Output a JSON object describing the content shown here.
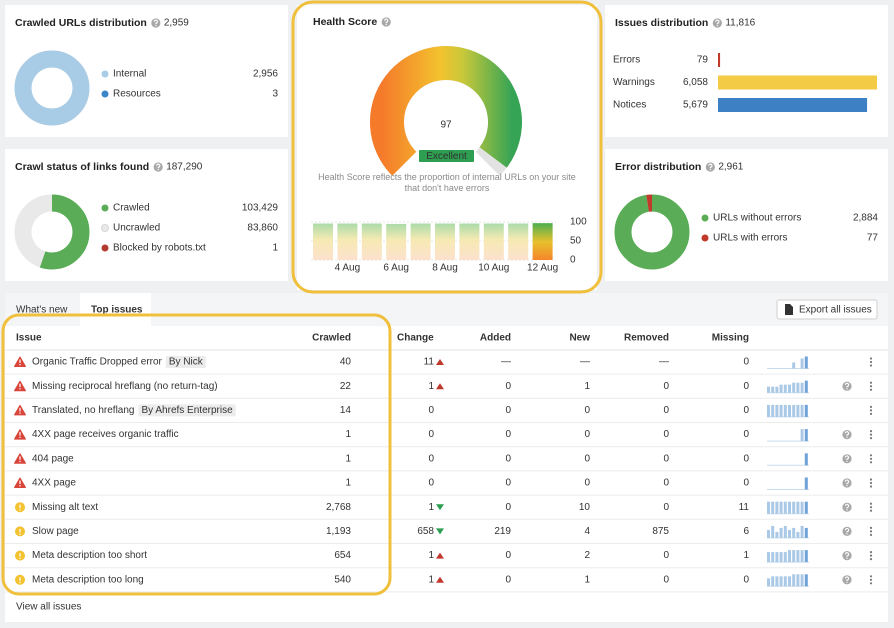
{
  "cards": {
    "crawled_urls": {
      "type": "donut",
      "title": "Crawled URLs distribution",
      "total": "2,959",
      "total_style": "link",
      "items": [
        {
          "label": "Internal",
          "value": "2,956",
          "color": "#a8cbe6"
        },
        {
          "label": "Resources",
          "value": "3",
          "color": "#3a86c8"
        }
      ]
    },
    "crawl_status": {
      "type": "donut",
      "title": "Crawl status of links found",
      "total": "187,290",
      "total_style": "link",
      "items": [
        {
          "label": "Crawled",
          "value": "103,429",
          "color": "#5aac56"
        },
        {
          "label": "Uncrawled",
          "value": "83,860",
          "color": "#e9e9e9"
        },
        {
          "label": "Blocked by robots.txt",
          "value": "1",
          "color": "#b23a2e"
        }
      ]
    },
    "issues_distribution": {
      "type": "bars",
      "title": "Issues distribution",
      "total": "11,816",
      "total_style": "muted",
      "items": [
        {
          "label": "Errors",
          "value": "79",
          "color": "#c0392b"
        },
        {
          "label": "Warnings",
          "value": "6,058",
          "color": "#f3cb45"
        },
        {
          "label": "Notices",
          "value": "5,679",
          "color": "#3d80c4"
        }
      ]
    },
    "error_distribution": {
      "type": "donut",
      "title": "Error distribution",
      "total": "2,961",
      "total_style": "muted",
      "items": [
        {
          "label": "URLs without errors",
          "value": "2,884",
          "color": "#5aac56"
        },
        {
          "label": "URLs with errors",
          "value": "77",
          "color": "#c0392b"
        }
      ]
    }
  },
  "health": {
    "title": "Health Score",
    "score": "97",
    "badge": "Excellent",
    "description": "Health Score reflects the proportion of internal URLs on your site that don't have errors",
    "history": {
      "categories": [
        null,
        "4 Aug",
        null,
        "6 Aug",
        null,
        "8 Aug",
        null,
        "10 Aug",
        null,
        "12 Aug"
      ],
      "values": [
        96,
        96,
        96,
        95,
        96,
        96,
        96,
        96,
        96,
        97
      ],
      "ylim": [
        0,
        100
      ],
      "yticks": [
        0,
        50,
        100
      ]
    }
  },
  "tabs": [
    "What's new",
    "Top issues"
  ],
  "active_tab": 1,
  "export_button": "Export all issues",
  "table": {
    "columns": [
      "Issue",
      "Crawled",
      "Change",
      "Added",
      "New",
      "Removed",
      "Missing"
    ],
    "rows": [
      {
        "severity": "error",
        "issue": "Organic Traffic Dropped error",
        "tag": "By Nick",
        "crawled": "40",
        "change": "11",
        "change_direction": "up",
        "added": "—",
        "new": "—",
        "removed": "—",
        "missing": "0",
        "trend": [
          0,
          0,
          0,
          0,
          0,
          0,
          3,
          0,
          5,
          6
        ],
        "help": false
      },
      {
        "severity": "error",
        "issue": "Missing reciprocal hreflang (no return-tag)",
        "crawled": "22",
        "change": "1",
        "change_direction": "up",
        "added": "0",
        "new": "1",
        "removed": "0",
        "missing": "0",
        "trend": [
          3,
          3,
          3,
          4,
          4,
          4,
          5,
          5,
          5,
          6
        ],
        "help": true
      },
      {
        "severity": "error",
        "issue": "Translated, no hreflang",
        "tag": "By Ahrefs Enterprise",
        "crawled": "14",
        "change": "0",
        "change_direction": null,
        "added": "0",
        "new": "0",
        "removed": "0",
        "missing": "0",
        "trend": [
          6,
          6,
          6,
          6,
          6,
          6,
          6,
          6,
          6,
          6
        ],
        "help": false
      },
      {
        "severity": "error",
        "issue": "4XX page receives organic traffic",
        "crawled": "1",
        "change": "0",
        "change_direction": null,
        "added": "0",
        "new": "0",
        "removed": "0",
        "missing": "0",
        "trend": [
          0,
          0,
          0,
          0,
          0,
          0,
          0,
          0,
          6,
          6
        ],
        "help": true
      },
      {
        "severity": "error",
        "issue": "404 page",
        "crawled": "1",
        "change": "0",
        "change_direction": null,
        "added": "0",
        "new": "0",
        "removed": "0",
        "missing": "0",
        "trend": [
          0,
          0,
          0,
          0,
          0,
          0,
          0,
          0,
          0,
          6
        ],
        "help": true
      },
      {
        "severity": "error",
        "issue": "4XX page",
        "crawled": "1",
        "change": "0",
        "change_direction": null,
        "added": "0",
        "new": "0",
        "removed": "0",
        "missing": "0",
        "trend": [
          0,
          0,
          0,
          0,
          0,
          0,
          0,
          0,
          0,
          6
        ],
        "help": true
      },
      {
        "severity": "warning",
        "issue": "Missing alt text",
        "crawled": "2,768",
        "change": "1",
        "change_direction": "down",
        "added": "0",
        "new": "10",
        "removed": "0",
        "missing": "11",
        "trend": [
          6,
          6,
          6,
          6,
          6,
          6,
          6,
          6,
          6,
          6
        ],
        "help": true
      },
      {
        "severity": "warning",
        "issue": "Slow page",
        "crawled": "1,193",
        "change": "658",
        "change_direction": "down",
        "added": "219",
        "new": "4",
        "removed": "875",
        "missing": "6",
        "trend": [
          4,
          6,
          3,
          5,
          6,
          4,
          5,
          3,
          6,
          5
        ],
        "help": true
      },
      {
        "severity": "warning",
        "issue": "Meta description too short",
        "crawled": "654",
        "change": "1",
        "change_direction": "up",
        "added": "0",
        "new": "2",
        "removed": "0",
        "missing": "1",
        "trend": [
          5,
          5,
          5,
          5,
          5,
          6,
          6,
          6,
          6,
          6
        ],
        "help": true
      },
      {
        "severity": "warning",
        "issue": "Meta description too long",
        "crawled": "540",
        "change": "1",
        "change_direction": "up",
        "added": "0",
        "new": "1",
        "removed": "0",
        "missing": "0",
        "trend": [
          4,
          5,
          5,
          5,
          5,
          5,
          6,
          6,
          6,
          6
        ],
        "help": true
      }
    ]
  },
  "footer_link": "View all issues"
}
